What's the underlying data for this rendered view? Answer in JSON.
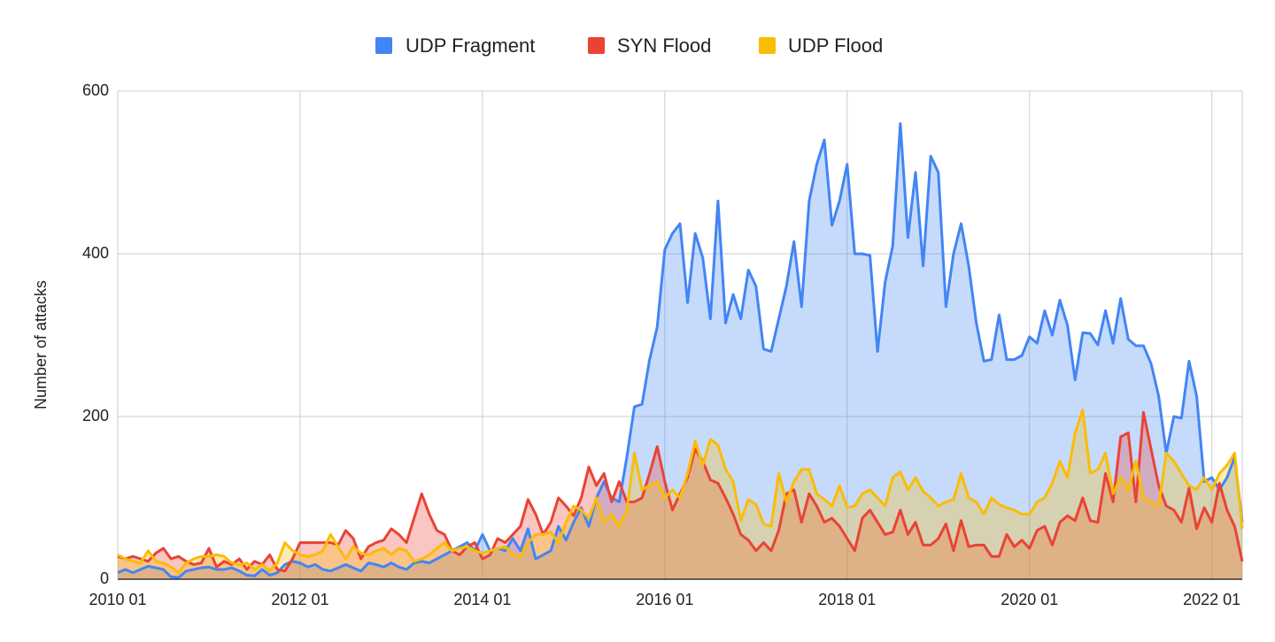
{
  "chart_data": {
    "type": "area",
    "y_axis_title": "Number of attacks",
    "x": [
      "2010 01",
      "2010 02",
      "2010 03",
      "2010 04",
      "2010 05",
      "2010 06",
      "2010 07",
      "2010 08",
      "2010 09",
      "2010 10",
      "2010 11",
      "2010 12",
      "2011 01",
      "2011 02",
      "2011 03",
      "2011 04",
      "2011 05",
      "2011 06",
      "2011 07",
      "2011 08",
      "2011 09",
      "2011 10",
      "2011 11",
      "2011 12",
      "2012 01",
      "2012 02",
      "2012 03",
      "2012 04",
      "2012 05",
      "2012 06",
      "2012 07",
      "2012 08",
      "2012 09",
      "2012 10",
      "2012 11",
      "2012 12",
      "2013 01",
      "2013 02",
      "2013 03",
      "2013 04",
      "2013 05",
      "2013 06",
      "2013 07",
      "2013 08",
      "2013 09",
      "2013 10",
      "2013 11",
      "2013 12",
      "2014 01",
      "2014 02",
      "2014 03",
      "2014 04",
      "2014 05",
      "2014 06",
      "2014 07",
      "2014 08",
      "2014 09",
      "2014 10",
      "2014 11",
      "2014 12",
      "2015 01",
      "2015 02",
      "2015 03",
      "2015 04",
      "2015 05",
      "2015 06",
      "2015 07",
      "2015 08",
      "2015 09",
      "2015 10",
      "2015 11",
      "2015 12",
      "2016 01",
      "2016 02",
      "2016 03",
      "2016 04",
      "2016 05",
      "2016 06",
      "2016 07",
      "2016 08",
      "2016 09",
      "2016 10",
      "2016 11",
      "2016 12",
      "2017 01",
      "2017 02",
      "2017 03",
      "2017 04",
      "2017 05",
      "2017 06",
      "2017 07",
      "2017 08",
      "2017 09",
      "2017 10",
      "2017 11",
      "2017 12",
      "2018 01",
      "2018 02",
      "2018 03",
      "2018 04",
      "2018 05",
      "2018 06",
      "2018 07",
      "2018 08",
      "2018 09",
      "2018 10",
      "2018 11",
      "2018 12",
      "2019 01",
      "2019 02",
      "2019 03",
      "2019 04",
      "2019 05",
      "2019 06",
      "2019 07",
      "2019 08",
      "2019 09",
      "2019 10",
      "2019 11",
      "2019 12",
      "2020 01",
      "2020 02",
      "2020 03",
      "2020 04",
      "2020 05",
      "2020 06",
      "2020 07",
      "2020 08",
      "2020 09",
      "2020 10",
      "2020 11",
      "2020 12",
      "2021 01",
      "2021 02",
      "2021 03",
      "2021 04",
      "2021 05",
      "2021 06",
      "2021 07",
      "2021 08",
      "2021 09",
      "2021 10",
      "2021 11",
      "2021 12",
      "2022 01",
      "2022 02",
      "2022 03",
      "2022 04",
      "2022 05"
    ],
    "series": [
      {
        "name": "UDP Fragment",
        "color": "#4285f4",
        "values": [
          8,
          12,
          8,
          12,
          16,
          14,
          12,
          3,
          2,
          10,
          12,
          14,
          15,
          12,
          12,
          14,
          10,
          5,
          4,
          12,
          5,
          8,
          18,
          22,
          20,
          15,
          18,
          12,
          10,
          14,
          18,
          14,
          10,
          20,
          18,
          15,
          20,
          15,
          12,
          20,
          22,
          20,
          25,
          30,
          35,
          40,
          45,
          35,
          55,
          35,
          38,
          35,
          50,
          35,
          62,
          25,
          30,
          35,
          65,
          48,
          70,
          88,
          65,
          100,
          120,
          100,
          95,
          150,
          212,
          215,
          270,
          310,
          405,
          425,
          437,
          340,
          425,
          395,
          320,
          465,
          315,
          350,
          320,
          380,
          360,
          283,
          280,
          320,
          360,
          415,
          335,
          465,
          510,
          540,
          435,
          465,
          510,
          400,
          400,
          398,
          280,
          365,
          410,
          560,
          420,
          500,
          385,
          520,
          500,
          335,
          400,
          437,
          385,
          315,
          268,
          270,
          325,
          270,
          270,
          275,
          298,
          290,
          330,
          300,
          343,
          312,
          245,
          303,
          302,
          288,
          330,
          290,
          345,
          295,
          287,
          287,
          265,
          225,
          155,
          200,
          198,
          268,
          225,
          120,
          125,
          110,
          125,
          150,
          70
        ]
      },
      {
        "name": "SYN Flood",
        "color": "#ea4335",
        "values": [
          28,
          25,
          28,
          25,
          22,
          32,
          38,
          25,
          28,
          22,
          18,
          20,
          38,
          15,
          22,
          18,
          25,
          12,
          22,
          18,
          30,
          12,
          10,
          25,
          45,
          45,
          45,
          45,
          45,
          42,
          60,
          50,
          25,
          40,
          45,
          48,
          62,
          55,
          45,
          75,
          105,
          80,
          60,
          55,
          35,
          30,
          40,
          45,
          25,
          30,
          50,
          45,
          55,
          65,
          98,
          80,
          55,
          70,
          100,
          90,
          78,
          100,
          138,
          115,
          130,
          95,
          120,
          95,
          95,
          100,
          130,
          163,
          120,
          85,
          105,
          125,
          160,
          145,
          122,
          118,
          100,
          80,
          55,
          48,
          35,
          45,
          35,
          60,
          105,
          110,
          70,
          105,
          90,
          70,
          75,
          65,
          50,
          35,
          75,
          85,
          70,
          55,
          58,
          85,
          55,
          70,
          42,
          42,
          50,
          68,
          35,
          72,
          40,
          42,
          42,
          28,
          28,
          55,
          40,
          48,
          38,
          60,
          65,
          42,
          70,
          78,
          72,
          100,
          72,
          70,
          130,
          95,
          175,
          180,
          95,
          205,
          160,
          115,
          90,
          85,
          70,
          112,
          62,
          88,
          70,
          118,
          85,
          65,
          22
        ]
      },
      {
        "name": "UDP Flood",
        "color": "#fbbc04",
        "values": [
          30,
          25,
          22,
          20,
          35,
          22,
          20,
          15,
          8,
          20,
          25,
          28,
          28,
          30,
          28,
          20,
          18,
          20,
          12,
          18,
          10,
          20,
          45,
          35,
          30,
          28,
          30,
          35,
          55,
          40,
          25,
          40,
          32,
          30,
          35,
          38,
          30,
          38,
          35,
          22,
          25,
          30,
          38,
          45,
          35,
          38,
          40,
          35,
          32,
          35,
          38,
          40,
          30,
          28,
          45,
          55,
          55,
          58,
          45,
          70,
          90,
          85,
          75,
          100,
          70,
          80,
          65,
          85,
          155,
          110,
          115,
          120,
          100,
          110,
          100,
          130,
          170,
          140,
          172,
          165,
          135,
          120,
          72,
          98,
          92,
          68,
          65,
          130,
          95,
          120,
          135,
          135,
          105,
          98,
          90,
          115,
          88,
          90,
          105,
          110,
          100,
          90,
          125,
          132,
          110,
          125,
          108,
          100,
          90,
          95,
          98,
          130,
          100,
          95,
          80,
          100,
          92,
          88,
          85,
          80,
          80,
          95,
          100,
          118,
          145,
          125,
          180,
          208,
          130,
          135,
          155,
          105,
          125,
          110,
          145,
          100,
          95,
          90,
          155,
          145,
          130,
          115,
          110,
          125,
          110,
          130,
          140,
          155,
          62
        ]
      }
    ],
    "ylim": [
      0,
      600
    ],
    "yticks": [
      0,
      200,
      400,
      600
    ],
    "xticks": [
      "2010 01",
      "2012 01",
      "2014 01",
      "2016 01",
      "2018 01",
      "2020 01",
      "2022 01"
    ],
    "grid": true,
    "legend": "top"
  }
}
